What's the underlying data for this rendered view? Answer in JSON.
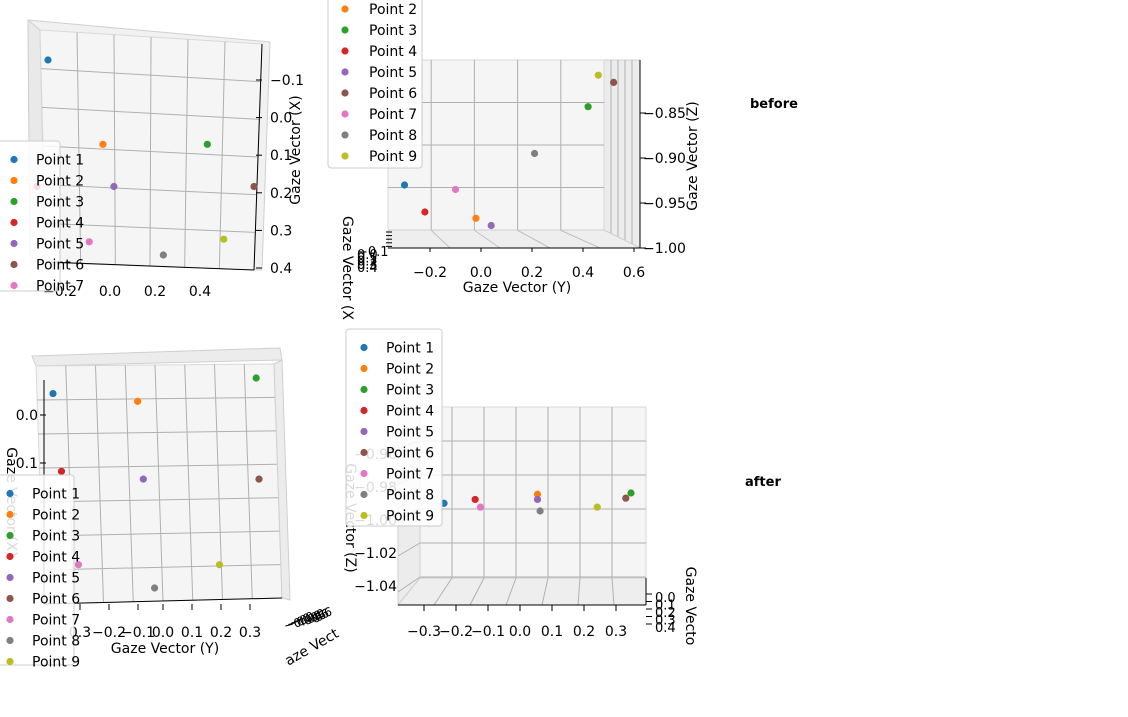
{
  "labels": {
    "before": "before",
    "after": "after"
  },
  "colors": {
    "Point 1": "#1f77b4",
    "Point 2": "#ff7f0e",
    "Point 3": "#2ca02c",
    "Point 4": "#d62728",
    "Point 5": "#9467bd",
    "Point 6": "#8c564b",
    "Point 7": "#e377c2",
    "Point 8": "#7f7f7f",
    "Point 9": "#bcbd22"
  },
  "chart_data": [
    {
      "type": "scatter",
      "view": "before-top-view",
      "ylabel": "Gaze Vector (X)",
      "yticks": [
        "−0.1",
        "0.0",
        "0.1",
        "0.2",
        "0.3",
        "0.4"
      ],
      "xticks": [
        "−0.2",
        "0.0",
        "0.2",
        "0.4"
      ],
      "legend_location": "lower-left",
      "legend_visible": [
        "Point 1",
        "Point 2",
        "Point 3",
        "Point 4",
        "Point 5",
        "Point 6",
        "Point 7"
      ],
      "series": [
        {
          "name": "Point 1",
          "y": -0.2,
          "x": -0.3
        },
        {
          "name": "Point 2",
          "y": 0.0,
          "x": 0.02
        },
        {
          "name": "Point 3",
          "y": 0.38,
          "x": 0.02
        },
        {
          "name": "Point 4",
          "y": -0.24,
          "x": 0.18
        },
        {
          "name": "Point 5",
          "y": 0.04,
          "x": 0.18
        },
        {
          "name": "Point 6",
          "y": 0.55,
          "x": 0.18
        },
        {
          "name": "Point 7",
          "y": -0.05,
          "x": 0.39
        },
        {
          "name": "Point 8",
          "y": 0.22,
          "x": 0.44
        },
        {
          "name": "Point 9",
          "y": 0.44,
          "x": 0.38
        }
      ]
    },
    {
      "type": "scatter",
      "view": "before-side-view",
      "xlabel": "Gaze Vector (Y)",
      "ylabel": "Gaze Vector (Z)",
      "zlabel": "Gaze Vector (X",
      "xticks": [
        "−0.2",
        "0.0",
        "0.2",
        "0.4",
        "0.6"
      ],
      "yticks": [
        "−0.85",
        "−0.90",
        "−0.95",
        "−1.00"
      ],
      "ztick_stack": [
        "−0.1",
        "0.0",
        "0.1",
        "0.2",
        "0.3",
        "0.4"
      ],
      "legend_location": "upper-left",
      "legend_visible": [
        "Point 2",
        "Point 3",
        "Point 4",
        "Point 5",
        "Point 6",
        "Point 7",
        "Point 8",
        "Point 9"
      ],
      "series": [
        {
          "name": "Point 1",
          "x": -0.3,
          "z": -0.93
        },
        {
          "name": "Point 2",
          "x": -0.02,
          "z": -0.967
        },
        {
          "name": "Point 3",
          "x": 0.42,
          "z": -0.843
        },
        {
          "name": "Point 4",
          "x": -0.22,
          "z": -0.96
        },
        {
          "name": "Point 5",
          "x": 0.04,
          "z": -0.975
        },
        {
          "name": "Point 6",
          "x": 0.52,
          "z": -0.816
        },
        {
          "name": "Point 7",
          "x": -0.1,
          "z": -0.935
        },
        {
          "name": "Point 8",
          "x": 0.21,
          "z": -0.895
        },
        {
          "name": "Point 9",
          "x": 0.46,
          "z": -0.808
        }
      ]
    },
    {
      "type": "scatter",
      "view": "after-top-view",
      "xlabel": "Gaze Vector (Y)",
      "ylabel": "Gaze Vector (X)",
      "zlabel": "aze Vect",
      "xticks": [
        "0.3",
        "−0.2",
        "−0.1",
        "0.0",
        "0.1",
        "0.2",
        "0.3"
      ],
      "yticks": [
        "0.0",
        "0.1"
      ],
      "legend_location": "lower-left",
      "legend_visible": [
        "Point 1",
        "Point 2",
        "Point 3",
        "Point 4",
        "Point 5",
        "Point 6",
        "Point 7",
        "Point 8",
        "Point 9"
      ],
      "series": [
        {
          "name": "Point 1",
          "y": -0.36,
          "x": -0.1
        },
        {
          "name": "Point 2",
          "y": -0.06,
          "x": -0.08
        },
        {
          "name": "Point 3",
          "y": 0.36,
          "x": -0.14
        },
        {
          "name": "Point 4",
          "y": -0.33,
          "x": 0.1
        },
        {
          "name": "Point 5",
          "y": -0.04,
          "x": 0.12
        },
        {
          "name": "Point 6",
          "y": 0.37,
          "x": 0.12
        },
        {
          "name": "Point 7",
          "y": -0.27,
          "x": 0.34
        },
        {
          "name": "Point 8",
          "y": 0.0,
          "x": 0.4
        },
        {
          "name": "Point 9",
          "y": 0.23,
          "x": 0.34
        }
      ]
    },
    {
      "type": "scatter",
      "view": "after-side-view",
      "xlabel": "",
      "ylabel": "Gaze Vector (Z)",
      "zlabel": "Gaze Vecto",
      "xticks": [
        "−0.3",
        "−0.2",
        "−0.1",
        "0.0",
        "0.1",
        "0.2",
        "0.3"
      ],
      "yticks": [
        "−0.96",
        "−0.98",
        "−1.00",
        "−1.02",
        "−1.04"
      ],
      "ztick_stack": [
        "0.0",
        "0.1",
        "0.2",
        "0.3",
        "0.4"
      ],
      "legend_location": "upper-left",
      "legend_visible": [
        "Point 1",
        "Point 2",
        "Point 3",
        "Point 4",
        "Point 5",
        "Point 6",
        "Point 7",
        "Point 8",
        "Point 9"
      ],
      "series": [
        {
          "name": "Point 1",
          "x": -0.36,
          "z": -0.99
        },
        {
          "name": "Point 2",
          "x": 0.0,
          "z": -0.983
        },
        {
          "name": "Point 3",
          "x": 0.36,
          "z": -0.982
        },
        {
          "name": "Point 4",
          "x": -0.24,
          "z": -0.987
        },
        {
          "name": "Point 5",
          "x": 0.0,
          "z": -0.987
        },
        {
          "name": "Point 6",
          "x": 0.34,
          "z": -0.986
        },
        {
          "name": "Point 7",
          "x": -0.22,
          "z": -0.993
        },
        {
          "name": "Point 8",
          "x": 0.01,
          "z": -0.996
        },
        {
          "name": "Point 9",
          "x": 0.23,
          "z": -0.993
        }
      ]
    }
  ]
}
